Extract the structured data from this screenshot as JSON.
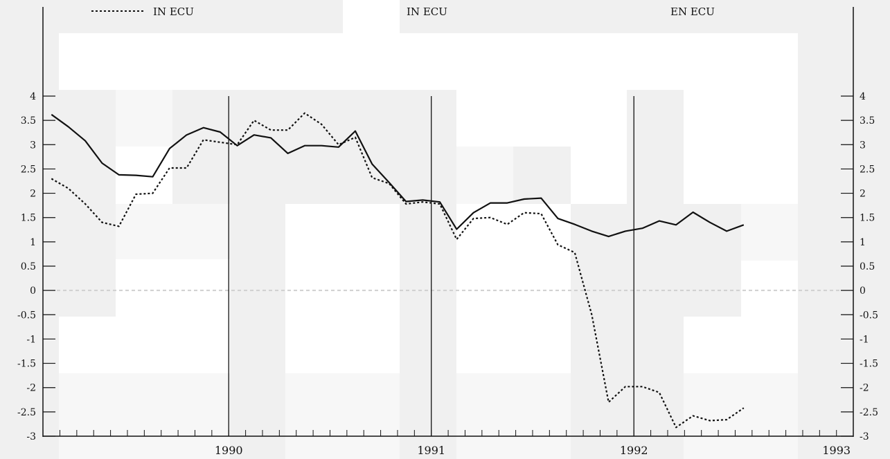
{
  "chart_data": {
    "type": "line",
    "legend_label": "IN ECU",
    "headers": [
      "IN ECU",
      "EN ECU"
    ],
    "ylim": [
      -3,
      4
    ],
    "yticks": [
      "4",
      "3.5",
      "3",
      "2.5",
      "2",
      "1.5",
      "1",
      "0.5",
      "0",
      "-0.5",
      "-1",
      "-1.5",
      "-2",
      "-2.5",
      "-3"
    ],
    "year_labels": [
      "1990",
      "1991",
      "1992",
      "1993"
    ],
    "x_range": [
      1989.583,
      1993.583
    ],
    "year_separators": [
      1990.5,
      1991.5,
      1992.5
    ],
    "series": [
      {
        "name": "",
        "style": "solid",
        "points": [
          [
            1989.625,
            3.62
          ],
          [
            1989.708,
            3.37
          ],
          [
            1989.792,
            3.08
          ],
          [
            1989.875,
            2.62
          ],
          [
            1989.958,
            2.38
          ],
          [
            1990.042,
            2.37
          ],
          [
            1990.125,
            2.34
          ],
          [
            1990.208,
            2.92
          ],
          [
            1990.292,
            3.2
          ],
          [
            1990.375,
            3.35
          ],
          [
            1990.458,
            3.26
          ],
          [
            1990.542,
            2.98
          ],
          [
            1990.625,
            3.2
          ],
          [
            1990.708,
            3.14
          ],
          [
            1990.792,
            2.82
          ],
          [
            1990.875,
            2.98
          ],
          [
            1990.958,
            2.98
          ],
          [
            1991.042,
            2.95
          ],
          [
            1991.125,
            3.28
          ],
          [
            1991.208,
            2.6
          ],
          [
            1991.292,
            2.22
          ],
          [
            1991.375,
            1.83
          ],
          [
            1991.458,
            1.86
          ],
          [
            1991.542,
            1.82
          ],
          [
            1991.625,
            1.26
          ],
          [
            1991.708,
            1.6
          ],
          [
            1991.792,
            1.8
          ],
          [
            1991.875,
            1.8
          ],
          [
            1991.958,
            1.88
          ],
          [
            1992.042,
            1.9
          ],
          [
            1992.125,
            1.48
          ],
          [
            1992.208,
            1.36
          ],
          [
            1992.292,
            1.22
          ],
          [
            1992.375,
            1.11
          ],
          [
            1992.458,
            1.22
          ],
          [
            1992.542,
            1.28
          ],
          [
            1992.625,
            1.43
          ],
          [
            1992.708,
            1.35
          ],
          [
            1992.792,
            1.61
          ],
          [
            1992.875,
            1.4
          ],
          [
            1992.958,
            1.22
          ],
          [
            1993.042,
            1.35
          ]
        ]
      },
      {
        "name": "IN ECU",
        "style": "dotted",
        "points": [
          [
            1989.625,
            2.3
          ],
          [
            1989.708,
            2.1
          ],
          [
            1989.792,
            1.78
          ],
          [
            1989.875,
            1.4
          ],
          [
            1989.958,
            1.32
          ],
          [
            1990.042,
            1.98
          ],
          [
            1990.125,
            2.0
          ],
          [
            1990.208,
            2.52
          ],
          [
            1990.292,
            2.52
          ],
          [
            1990.375,
            3.1
          ],
          [
            1990.458,
            3.05
          ],
          [
            1990.542,
            3.0
          ],
          [
            1990.625,
            3.5
          ],
          [
            1990.708,
            3.3
          ],
          [
            1990.792,
            3.3
          ],
          [
            1990.875,
            3.65
          ],
          [
            1990.958,
            3.42
          ],
          [
            1991.042,
            3.0
          ],
          [
            1991.125,
            3.15
          ],
          [
            1991.208,
            2.32
          ],
          [
            1991.292,
            2.2
          ],
          [
            1991.375,
            1.78
          ],
          [
            1991.458,
            1.82
          ],
          [
            1991.542,
            1.78
          ],
          [
            1991.625,
            1.05
          ],
          [
            1991.708,
            1.48
          ],
          [
            1991.792,
            1.5
          ],
          [
            1991.875,
            1.36
          ],
          [
            1991.958,
            1.6
          ],
          [
            1992.042,
            1.58
          ],
          [
            1992.125,
            0.94
          ],
          [
            1992.208,
            0.78
          ],
          [
            1992.292,
            -0.5
          ],
          [
            1992.375,
            -2.3
          ],
          [
            1992.458,
            -1.98
          ],
          [
            1992.542,
            -1.98
          ],
          [
            1992.625,
            -2.1
          ],
          [
            1992.708,
            -2.82
          ],
          [
            1992.792,
            -2.58
          ],
          [
            1992.875,
            -2.68
          ],
          [
            1992.958,
            -2.66
          ],
          [
            1993.042,
            -2.42
          ]
        ]
      }
    ],
    "colors": {
      "line": "#111111",
      "background": "#ffffff",
      "band": "#f0f0f0",
      "band_light": "#f7f7f7"
    }
  }
}
